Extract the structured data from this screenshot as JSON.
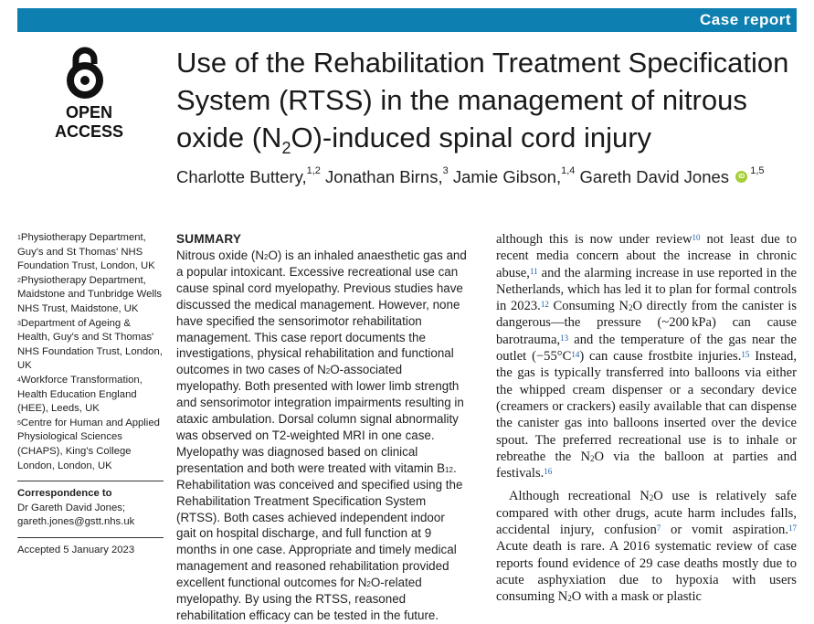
{
  "header": {
    "section_label": "Case report"
  },
  "badge": {
    "text": "OPEN ACCESS"
  },
  "title": {
    "part1": "Use of the Rehabilitation Treatment Specification System (RTSS) in the management of nitrous oxide (N",
    "sub": "2",
    "part2": "O)-induced spinal cord injury"
  },
  "authors": [
    {
      "name": "Charlotte Buttery,",
      "sup": "1,2"
    },
    {
      "name": "Jonathan Birns,",
      "sup": "3"
    },
    {
      "name": "Jamie Gibson,",
      "sup": "1,4"
    },
    {
      "name": "Gareth David Jones",
      "sup": "1,5"
    }
  ],
  "orcid_label": "iD",
  "affiliations": [
    {
      "num": "1",
      "text": "Physiotherapy Department, Guy's and St Thomas' NHS Foundation Trust, London, UK"
    },
    {
      "num": "2",
      "text": "Physiotherapy Department, Maidstone and Tunbridge Wells NHS Trust, Maidstone, UK"
    },
    {
      "num": "3",
      "text": "Department of Ageing & Health, Guy's and St Thomas' NHS Foundation Trust, London, UK"
    },
    {
      "num": "4",
      "text": "Workforce Transformation, Health Education England (HEE), Leeds, UK"
    },
    {
      "num": "5",
      "text": "Centre for Human and Applied Physiological Sciences (CHAPS), King's College London, London, UK"
    }
  ],
  "correspondence": {
    "heading": "Correspondence to",
    "name": "Dr Gareth David Jones;",
    "email": "gareth.jones@gstt.nhs.uk"
  },
  "accepted": "Accepted 5 January 2023",
  "summary": {
    "heading": "SUMMARY",
    "t1": "Nitrous oxide (N",
    "s1": "2",
    "t2": "O) is an inhaled anaesthetic gas and a popular intoxicant. Excessive recreational use can cause spinal cord myelopathy. Previous studies have discussed the medical management. However, none have specified the sensorimotor rehabilitation management. This case report documents the investigations, physical rehabilitation and functional outcomes in two cases of N",
    "s2": "2",
    "t3": "O-associated myelopathy. Both presented with lower limb strength and sensorimotor integration impairments resulting in ataxic ambulation. Dorsal column signal abnormality was observed on T2-weighted MRI in one case. Myelopathy was diagnosed based on clinical presentation and both were treated with vitamin B",
    "s3": "12",
    "t4": ". Rehabilitation was conceived and specified using the Rehabilitation Treatment Specification System (RTSS). Both cases achieved independent indoor gait on hospital discharge, and full function at 9 months in one case. Appropriate and timely medical management and reasoned rehabilitation provided excellent functional outcomes for N",
    "s4": "2",
    "t5": "O-related myelopathy. By using the RTSS, reasoned rehabilitation efficacy can be tested in the future."
  },
  "body": {
    "p1": {
      "a": "although this is now under review",
      "r1": "10",
      "b": " not least due to recent media concern about the increase in chronic abuse,",
      "r2": "11",
      "c": " and the alarming increase in use reported in the Netherlands, which has led it to plan for formal controls in 2023.",
      "r3": "12",
      "d": " Consuming N",
      "s1": "2",
      "e": "O directly from the canister is dangerous—the pressure (~200 kPa) can cause barotrauma,",
      "r4": "13",
      "f": " and the temperature of the gas near the outlet (−55°C",
      "r5": "14",
      "g": ") can cause frostbite injuries.",
      "r6": "15",
      "h": " Instead, the gas is typically transferred into balloons via either the whipped cream dispenser or a secondary device (creamers or crackers) easily available that can dispense the canister gas into balloons inserted over the device spout. The preferred recreational use is to inhale or rebreathe the N",
      "s2": "2",
      "i": "O via the balloon at parties and festivals.",
      "r7": "16"
    },
    "p2": {
      "a": "Although recreational N",
      "s1": "2",
      "b": "O use is relatively safe compared with other drugs, acute harm includes falls, accidental injury, confusion",
      "r1": "7",
      "c": " or vomit aspiration.",
      "r2": "17",
      "d": " Acute death is rare. A 2016 systematic review of case reports found evidence of 29 case deaths mostly due to acute asphyxiation due to hypoxia with users consuming N",
      "s2": "2",
      "e": "O with a mask or plastic"
    }
  }
}
